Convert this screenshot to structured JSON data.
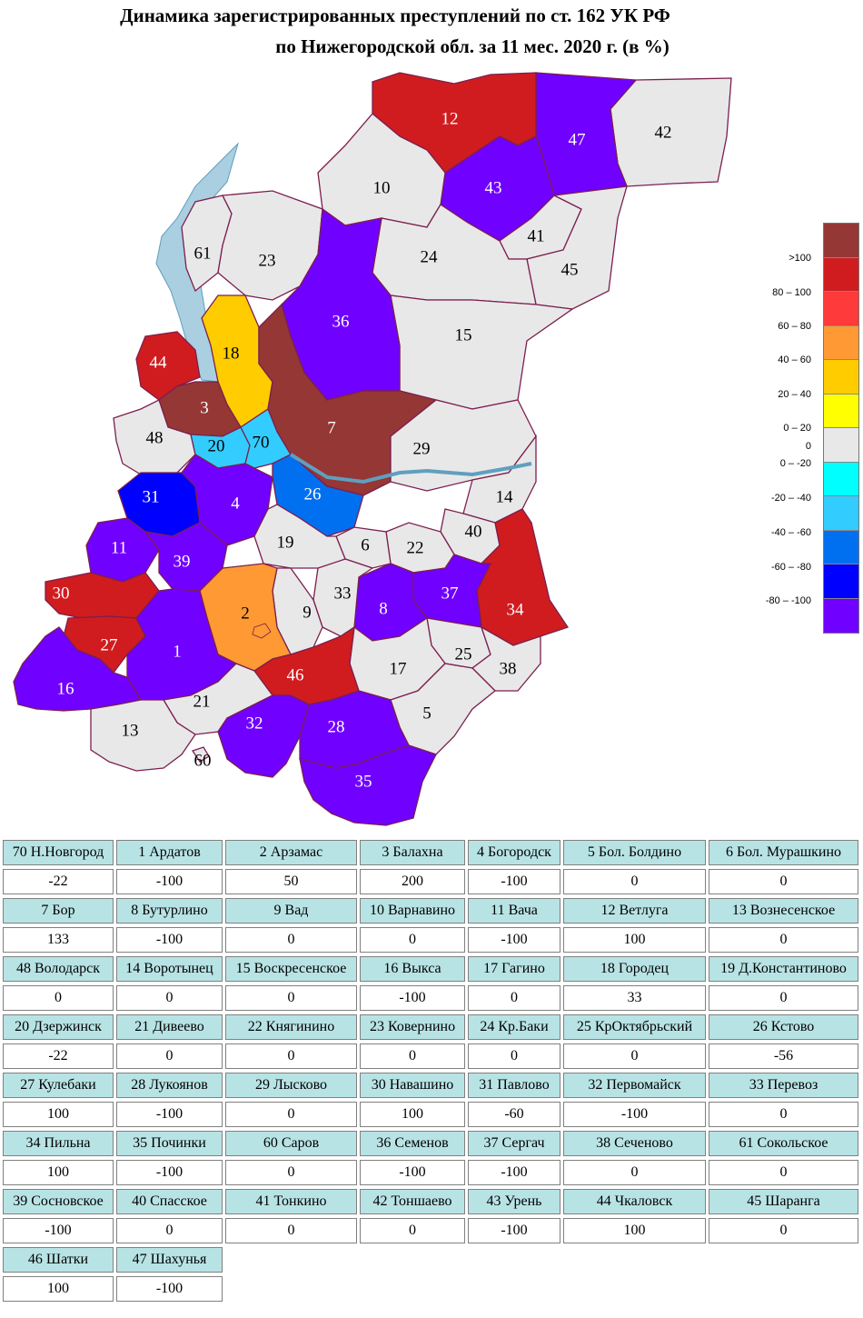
{
  "title": {
    "line1": "Динамика зарегистрированных преступлений по ст. 162 УК РФ",
    "line2": "по Нижегородской обл. за 11 мес. 2020 г. (в %)"
  },
  "colors": {
    "over100": "#953735",
    "r80_100": "#d01c1f",
    "r60_80": "#ff3a3a",
    "r40_60": "#ff9933",
    "r20_40": "#ffcc00",
    "r0_20": "#ffff00",
    "zero": "#e8e8e8",
    "n0_20": "#00ffff",
    "n20_40": "#33ccff",
    "n40_60": "#0070f0",
    "n60_80": "#0000ff",
    "n80_100": "#7000ff",
    "water": "#a9cfe0",
    "border": "#7b1f4f"
  },
  "legend": [
    {
      "label": ">100",
      "color": "#953735"
    },
    {
      "label": "80 – 100",
      "color": "#d01c1f"
    },
    {
      "label": "60 – 80",
      "color": "#ff3a3a"
    },
    {
      "label": "40 – 60",
      "color": "#ff9933"
    },
    {
      "label": "20 – 40",
      "color": "#ffcc00"
    },
    {
      "label": "0 – 20",
      "color": "#ffff00"
    },
    {
      "label": "0",
      "color": "#e8e8e8"
    },
    {
      "label": "0 – -20",
      "color": "#00ffff"
    },
    {
      "label": "-20 – -40",
      "color": "#33ccff"
    },
    {
      "label": "-40 – -60",
      "color": "#0070f0"
    },
    {
      "label": "-60 – -80",
      "color": "#0000ff"
    },
    {
      "label": "-80 – -100",
      "color": "#7000ff"
    }
  ],
  "map_labels": [
    "70",
    "1",
    "2",
    "3",
    "4",
    "5",
    "6",
    "7",
    "8",
    "9",
    "10",
    "11",
    "12",
    "13",
    "48",
    "14",
    "15",
    "16",
    "17",
    "18",
    "19",
    "20",
    "21",
    "22",
    "23",
    "24",
    "25",
    "26",
    "27",
    "28",
    "29",
    "30",
    "31",
    "32",
    "33",
    "34",
    "35",
    "60",
    "36",
    "37",
    "38",
    "61",
    "39",
    "40",
    "41",
    "42",
    "43",
    "44",
    "45",
    "46",
    "47"
  ],
  "table": [
    {
      "name": "70 Н.Новгород",
      "value": "-22"
    },
    {
      "name": "1 Ардатов",
      "value": "-100"
    },
    {
      "name": "2 Арзамас",
      "value": "50"
    },
    {
      "name": "3 Балахна",
      "value": "200"
    },
    {
      "name": "4 Богородск",
      "value": "-100"
    },
    {
      "name": "5 Бол. Болдино",
      "value": "0"
    },
    {
      "name": "6 Бол. Мурашкино",
      "value": "0"
    },
    {
      "name": "7 Бор",
      "value": "133"
    },
    {
      "name": "8 Бутурлино",
      "value": "-100"
    },
    {
      "name": "9 Вад",
      "value": "0"
    },
    {
      "name": "10 Варнавино",
      "value": "0"
    },
    {
      "name": "11 Вача",
      "value": "-100"
    },
    {
      "name": "12 Ветлуга",
      "value": "100"
    },
    {
      "name": "13 Вознесенское",
      "value": "0"
    },
    {
      "name": "48 Володарск",
      "value": "0"
    },
    {
      "name": "14 Воротынец",
      "value": "0"
    },
    {
      "name": "15 Воскресенское",
      "value": "0"
    },
    {
      "name": "16 Выкса",
      "value": "-100"
    },
    {
      "name": "17 Гагино",
      "value": "0"
    },
    {
      "name": "18 Городец",
      "value": "33"
    },
    {
      "name": "19 Д.Константиново",
      "value": "0"
    },
    {
      "name": "20 Дзержинск",
      "value": "-22"
    },
    {
      "name": "21 Дивеево",
      "value": "0"
    },
    {
      "name": "22 Княгинино",
      "value": "0"
    },
    {
      "name": "23 Ковернино",
      "value": "0"
    },
    {
      "name": "24 Кр.Баки",
      "value": "0"
    },
    {
      "name": "25 КрОктябрьский",
      "value": "0"
    },
    {
      "name": "26 Кстово",
      "value": "-56"
    },
    {
      "name": "27 Кулебаки",
      "value": "100"
    },
    {
      "name": "28 Лукоянов",
      "value": "-100"
    },
    {
      "name": "29 Лысково",
      "value": "0"
    },
    {
      "name": "30 Навашино",
      "value": "100"
    },
    {
      "name": "31 Павлово",
      "value": "-60"
    },
    {
      "name": "32 Первомайск",
      "value": "-100"
    },
    {
      "name": "33 Перевоз",
      "value": "0"
    },
    {
      "name": "34 Пильна",
      "value": "100"
    },
    {
      "name": "35 Починки",
      "value": "-100"
    },
    {
      "name": "60 Саров",
      "value": "0"
    },
    {
      "name": "36 Семенов",
      "value": "-100"
    },
    {
      "name": "37 Сергач",
      "value": "-100"
    },
    {
      "name": "38 Сеченово",
      "value": "0"
    },
    {
      "name": "61 Сокольское",
      "value": "0"
    },
    {
      "name": "39 Сосновское",
      "value": "-100"
    },
    {
      "name": "40 Спасское",
      "value": "0"
    },
    {
      "name": "41 Тонкино",
      "value": "0"
    },
    {
      "name": "42 Тоншаево",
      "value": "0"
    },
    {
      "name": "43 Урень",
      "value": "-100"
    },
    {
      "name": "44 Чкаловск",
      "value": "100"
    },
    {
      "name": "45 Шаранга",
      "value": "0"
    },
    {
      "name": "46 Шатки",
      "value": "100"
    },
    {
      "name": "47 Шахунья",
      "value": "-100"
    }
  ]
}
